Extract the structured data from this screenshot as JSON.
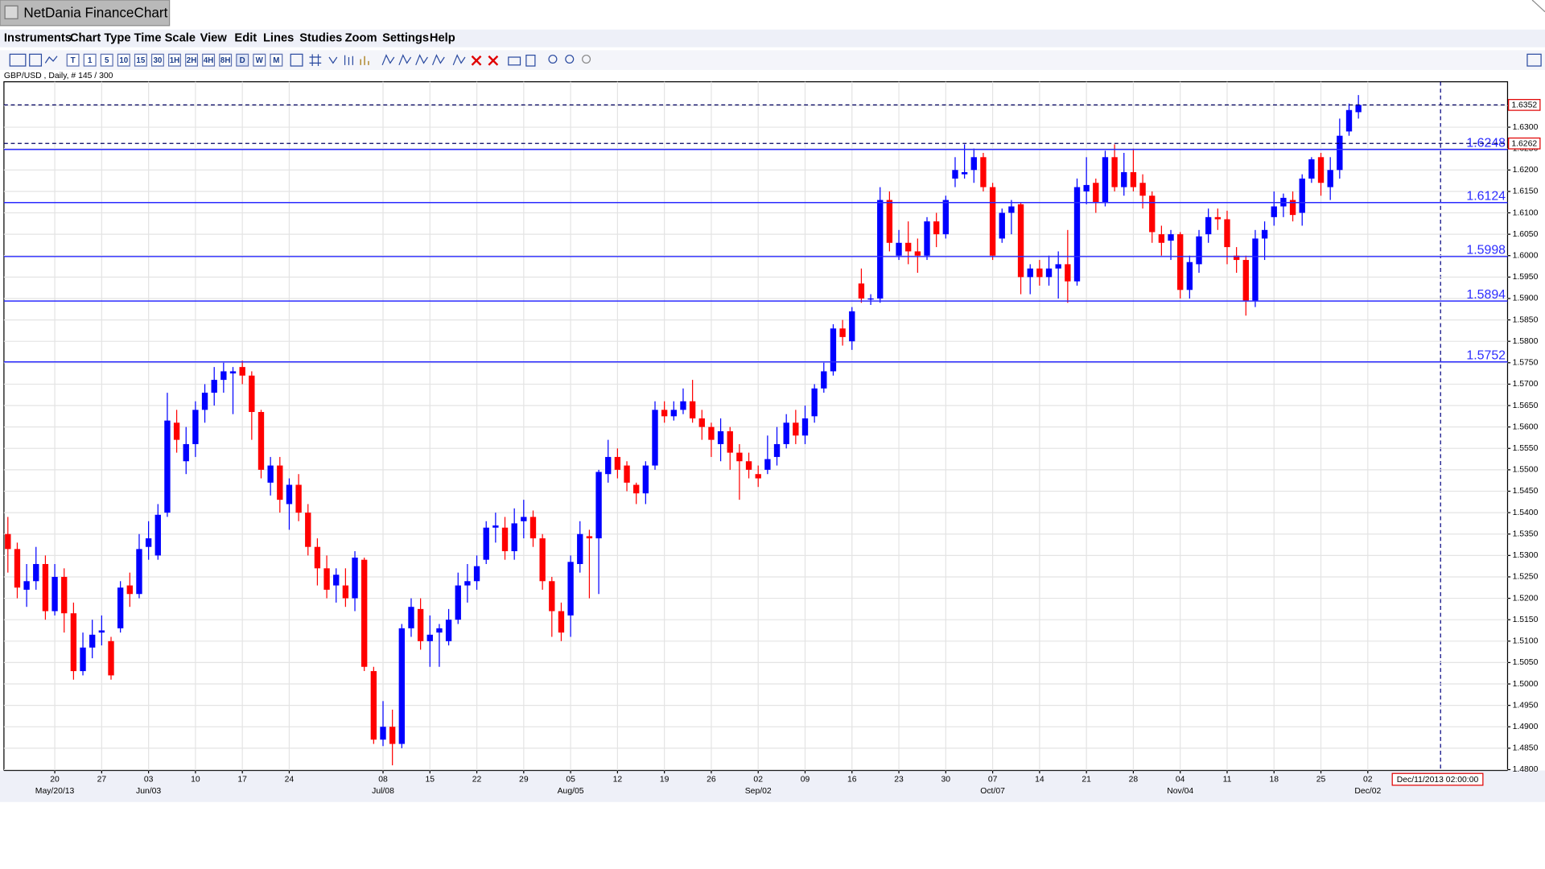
{
  "app_title": "NetDania FinanceChart",
  "menu": [
    "Instruments",
    "Chart Type",
    "Time Scale",
    "View",
    "Edit",
    "Lines",
    "Studies",
    "Zoom",
    "Settings",
    "Help"
  ],
  "toolbar": [
    "T",
    "1",
    "5",
    "10",
    "15",
    "30",
    "1H",
    "2H",
    "4H",
    "8H",
    "D",
    "W",
    "M"
  ],
  "chart_data": {
    "type": "candlestick",
    "subtitle": "GBP/USD , Daily, # 145 / 300",
    "open": [
      1.535,
      1.5315,
      1.522,
      1.524,
      1.528,
      1.517,
      1.525,
      1.5165,
      1.503,
      1.5085,
      1.512,
      1.51,
      1.513,
      1.523,
      1.521,
      1.532,
      1.53,
      1.54,
      1.561,
      1.552,
      1.556,
      1.564,
      1.568,
      1.571,
      1.5725,
      1.574,
      1.572,
      1.5635,
      1.547,
      1.551,
      1.542,
      1.5465,
      1.54,
      1.532,
      1.527,
      1.523,
      1.523,
      1.52,
      1.529,
      1.503,
      1.487,
      1.49,
      1.486,
      1.513,
      1.5175,
      1.51,
      1.512,
      1.51,
      1.515,
      1.523,
      1.524,
      1.529,
      1.5365,
      1.5365,
      1.531,
      1.538,
      1.539,
      1.534,
      1.524,
      1.517,
      1.516,
      1.528,
      1.5345,
      1.534,
      1.549,
      1.553,
      1.551,
      1.5465,
      1.5445,
      1.551,
      1.564,
      1.5625,
      1.564,
      1.566,
      1.562,
      1.56,
      1.556,
      1.559,
      1.554,
      1.552,
      1.549,
      1.55,
      1.553,
      1.556,
      1.561,
      1.558,
      1.5625,
      1.569,
      1.573,
      1.583,
      1.58,
      1.5935,
      1.59,
      1.59,
      1.613,
      1.6,
      1.603,
      1.601,
      1.6,
      1.608,
      1.605,
      1.618,
      1.619,
      1.62,
      1.623,
      1.616,
      1.604,
      1.61,
      1.612,
      1.595,
      1.597,
      1.595,
      1.597,
      1.598,
      1.594,
      1.615,
      1.617,
      1.6125,
      1.623,
      1.616,
      1.6195,
      1.617,
      1.614,
      1.605,
      1.6035,
      1.605,
      1.592,
      1.598,
      1.605,
      1.609,
      1.6085,
      1.6,
      1.599,
      1.5895,
      1.604,
      1.609,
      1.6115,
      1.613,
      1.61,
      1.618,
      1.623,
      1.616,
      1.62,
      1.629,
      1.6335
    ],
    "high": [
      1.539,
      1.533,
      1.528,
      1.532,
      1.53,
      1.528,
      1.527,
      1.519,
      1.512,
      1.515,
      1.516,
      1.511,
      1.524,
      1.526,
      1.535,
      1.538,
      1.542,
      1.568,
      1.564,
      1.56,
      1.566,
      1.57,
      1.574,
      1.575,
      1.574,
      1.5755,
      1.573,
      1.564,
      1.553,
      1.553,
      1.548,
      1.549,
      1.542,
      1.534,
      1.53,
      1.527,
      1.527,
      1.531,
      1.5295,
      1.504,
      1.496,
      1.494,
      1.514,
      1.52,
      1.52,
      1.516,
      1.514,
      1.5175,
      1.526,
      1.528,
      1.53,
      1.538,
      1.54,
      1.539,
      1.541,
      1.543,
      1.5405,
      1.535,
      1.525,
      1.519,
      1.53,
      1.538,
      1.536,
      1.55,
      1.557,
      1.555,
      1.552,
      1.547,
      1.552,
      1.566,
      1.566,
      1.566,
      1.569,
      1.571,
      1.564,
      1.561,
      1.562,
      1.56,
      1.556,
      1.554,
      1.551,
      1.558,
      1.56,
      1.563,
      1.564,
      1.565,
      1.57,
      1.575,
      1.584,
      1.585,
      1.588,
      1.597,
      1.591,
      1.616,
      1.615,
      1.606,
      1.608,
      1.604,
      1.609,
      1.61,
      1.614,
      1.623,
      1.626,
      1.625,
      1.624,
      1.617,
      1.611,
      1.613,
      1.6125,
      1.598,
      1.599,
      1.6,
      1.601,
      1.606,
      1.618,
      1.623,
      1.618,
      1.6245,
      1.626,
      1.624,
      1.625,
      1.619,
      1.615,
      1.607,
      1.606,
      1.6055,
      1.6,
      1.606,
      1.611,
      1.611,
      1.6105,
      1.602,
      1.6,
      1.606,
      1.608,
      1.615,
      1.6145,
      1.615,
      1.619,
      1.623,
      1.624,
      1.623,
      1.632,
      1.6355,
      1.6375
    ],
    "low": [
      1.526,
      1.52,
      1.518,
      1.522,
      1.515,
      1.516,
      1.512,
      1.501,
      1.502,
      1.506,
      1.509,
      1.501,
      1.512,
      1.518,
      1.52,
      1.529,
      1.529,
      1.539,
      1.554,
      1.549,
      1.553,
      1.561,
      1.565,
      1.568,
      1.563,
      1.57,
      1.557,
      1.548,
      1.544,
      1.54,
      1.536,
      1.538,
      1.53,
      1.523,
      1.52,
      1.519,
      1.518,
      1.517,
      1.503,
      1.486,
      1.4855,
      1.481,
      1.485,
      1.511,
      1.508,
      1.504,
      1.504,
      1.509,
      1.514,
      1.519,
      1.522,
      1.528,
      1.533,
      1.529,
      1.529,
      1.534,
      1.532,
      1.522,
      1.511,
      1.51,
      1.511,
      1.526,
      1.52,
      1.521,
      1.547,
      1.548,
      1.545,
      1.542,
      1.542,
      1.55,
      1.561,
      1.5615,
      1.563,
      1.561,
      1.557,
      1.553,
      1.552,
      1.55,
      1.543,
      1.548,
      1.546,
      1.549,
      1.551,
      1.555,
      1.556,
      1.556,
      1.561,
      1.568,
      1.572,
      1.579,
      1.578,
      1.589,
      1.5885,
      1.589,
      1.601,
      1.599,
      1.598,
      1.596,
      1.599,
      1.602,
      1.604,
      1.616,
      1.618,
      1.617,
      1.615,
      1.599,
      1.603,
      1.605,
      1.591,
      1.591,
      1.593,
      1.593,
      1.59,
      1.589,
      1.593,
      1.612,
      1.61,
      1.6115,
      1.615,
      1.614,
      1.615,
      1.611,
      1.603,
      1.6,
      1.599,
      1.59,
      1.59,
      1.596,
      1.603,
      1.606,
      1.598,
      1.596,
      1.586,
      1.588,
      1.599,
      1.607,
      1.609,
      1.608,
      1.607,
      1.617,
      1.614,
      1.613,
      1.618,
      1.628,
      1.632
    ],
    "close": [
      1.5315,
      1.5225,
      1.524,
      1.528,
      1.517,
      1.525,
      1.5165,
      1.503,
      1.5085,
      1.5115,
      1.5125,
      1.502,
      1.5225,
      1.521,
      1.5315,
      1.534,
      1.5395,
      1.5615,
      1.557,
      1.556,
      1.564,
      1.568,
      1.571,
      1.573,
      1.573,
      1.572,
      1.5635,
      1.55,
      1.551,
      1.543,
      1.5465,
      1.54,
      1.532,
      1.527,
      1.522,
      1.5255,
      1.52,
      1.5295,
      1.504,
      1.487,
      1.49,
      1.486,
      1.513,
      1.518,
      1.51,
      1.5115,
      1.513,
      1.515,
      1.523,
      1.524,
      1.5275,
      1.5365,
      1.537,
      1.531,
      1.5375,
      1.539,
      1.534,
      1.524,
      1.517,
      1.512,
      1.5285,
      1.535,
      1.534,
      1.5495,
      1.553,
      1.55,
      1.547,
      1.5445,
      1.551,
      1.564,
      1.5625,
      1.564,
      1.566,
      1.562,
      1.56,
      1.557,
      1.559,
      1.554,
      1.552,
      1.55,
      1.548,
      1.5525,
      1.556,
      1.561,
      1.558,
      1.562,
      1.569,
      1.573,
      1.583,
      1.581,
      1.587,
      1.59,
      1.59,
      1.613,
      1.603,
      1.603,
      1.601,
      1.6,
      1.608,
      1.605,
      1.613,
      1.62,
      1.6195,
      1.623,
      1.616,
      1.6,
      1.61,
      1.6115,
      1.595,
      1.597,
      1.595,
      1.597,
      1.598,
      1.594,
      1.616,
      1.6165,
      1.6125,
      1.623,
      1.616,
      1.6195,
      1.616,
      1.614,
      1.6055,
      1.603,
      1.605,
      1.592,
      1.5985,
      1.6045,
      1.609,
      1.6085,
      1.602,
      1.599,
      1.5895,
      1.604,
      1.606,
      1.6115,
      1.6135,
      1.6095,
      1.618,
      1.6225,
      1.617,
      1.62,
      1.628,
      1.634,
      1.6352
    ],
    "up_color": "#0000ff",
    "down_color": "#ff0000",
    "xlim": [
      -0.42,
      159.9
    ],
    "ylim": [
      1.4798,
      1.6406
    ],
    "yticks": [
      {
        "value": 1.48,
        "label": "1.4800"
      },
      {
        "value": 1.485,
        "label": "1.4850"
      },
      {
        "value": 1.49,
        "label": "1.4900"
      },
      {
        "value": 1.495,
        "label": "1.4950"
      },
      {
        "value": 1.5,
        "label": "1.5000"
      },
      {
        "value": 1.505,
        "label": "1.5050"
      },
      {
        "value": 1.51,
        "label": "1.5100"
      },
      {
        "value": 1.515,
        "label": "1.5150"
      },
      {
        "value": 1.52,
        "label": "1.5200"
      },
      {
        "value": 1.525,
        "label": "1.5250"
      },
      {
        "value": 1.53,
        "label": "1.5300"
      },
      {
        "value": 1.535,
        "label": "1.5350"
      },
      {
        "value": 1.54,
        "label": "1.5400"
      },
      {
        "value": 1.545,
        "label": "1.5450"
      },
      {
        "value": 1.55,
        "label": "1.5500"
      },
      {
        "value": 1.555,
        "label": "1.5550"
      },
      {
        "value": 1.56,
        "label": "1.5600"
      },
      {
        "value": 1.565,
        "label": "1.5650"
      },
      {
        "value": 1.57,
        "label": "1.5700"
      },
      {
        "value": 1.575,
        "label": "1.5750"
      },
      {
        "value": 1.58,
        "label": "1.5800"
      },
      {
        "value": 1.585,
        "label": "1.5850"
      },
      {
        "value": 1.59,
        "label": "1.5900"
      },
      {
        "value": 1.595,
        "label": "1.5950"
      },
      {
        "value": 1.6,
        "label": "1.6000"
      },
      {
        "value": 1.605,
        "label": "1.6050"
      },
      {
        "value": 1.61,
        "label": "1.6100"
      },
      {
        "value": 1.615,
        "label": "1.6150"
      },
      {
        "value": 1.62,
        "label": "1.6200"
      },
      {
        "value": 1.625,
        "label": "1.6250"
      },
      {
        "value": 1.63,
        "label": "1.6300"
      },
      {
        "value": 1.635,
        "label": "1.6350"
      }
    ],
    "xticks": [
      {
        "value": 5,
        "label": "20"
      },
      {
        "value": 10,
        "label": "27"
      },
      {
        "value": 15,
        "label": "03"
      },
      {
        "value": 20,
        "label": "10"
      },
      {
        "value": 25,
        "label": "17"
      },
      {
        "value": 30,
        "label": "24"
      },
      {
        "value": 40,
        "label": "08"
      },
      {
        "value": 45,
        "label": "15"
      },
      {
        "value": 50,
        "label": "22"
      },
      {
        "value": 55,
        "label": "29"
      },
      {
        "value": 60,
        "label": "05"
      },
      {
        "value": 65,
        "label": "12"
      },
      {
        "value": 70,
        "label": "19"
      },
      {
        "value": 75,
        "label": "26"
      },
      {
        "value": 80,
        "label": "02"
      },
      {
        "value": 85,
        "label": "09"
      },
      {
        "value": 90,
        "label": "16"
      },
      {
        "value": 95,
        "label": "23"
      },
      {
        "value": 100,
        "label": "30"
      },
      {
        "value": 105,
        "label": "07"
      },
      {
        "value": 110,
        "label": "14"
      },
      {
        "value": 115,
        "label": "21"
      },
      {
        "value": 120,
        "label": "28"
      },
      {
        "value": 125,
        "label": "04"
      },
      {
        "value": 130,
        "label": "11"
      },
      {
        "value": 135,
        "label": "18"
      },
      {
        "value": 140,
        "label": "25"
      },
      {
        "value": 145,
        "label": "02"
      }
    ],
    "xticks_major": [
      {
        "value": 5,
        "label": "May/20/13"
      },
      {
        "value": 15,
        "label": "Jun/03"
      },
      {
        "value": 40,
        "label": "Jul/08"
      },
      {
        "value": 60,
        "label": "Aug/05"
      },
      {
        "value": 80,
        "label": "Sep/02"
      },
      {
        "value": 105,
        "label": "Oct/07"
      },
      {
        "value": 125,
        "label": "Nov/04"
      },
      {
        "value": 145,
        "label": "Dec/02"
      }
    ],
    "grid": true,
    "hlines": {
      "color": "#2b2bff",
      "values": [
        1.6248,
        1.6124,
        1.5998,
        1.5894,
        1.5752
      ]
    },
    "price_tags": [
      1.6352,
      1.6262
    ],
    "cursor_time": "Dec/11/2013 02:00:00"
  }
}
